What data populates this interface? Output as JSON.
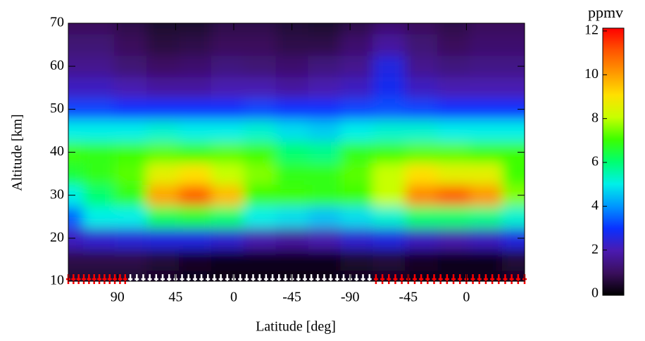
{
  "chart_data": {
    "type": "contour",
    "xlabel": "Latitude [deg]",
    "ylabel": "Altitude [km]",
    "colorbar_label": "ppmv",
    "xlim": [
      52,
      405
    ],
    "ylim": [
      10,
      70
    ],
    "xticks": [
      {
        "value": 90,
        "label": "90"
      },
      {
        "value": 135,
        "label": "45"
      },
      {
        "value": 180,
        "label": "0"
      },
      {
        "value": 225,
        "label": "-45"
      },
      {
        "value": 270,
        "label": "-90"
      },
      {
        "value": 315,
        "label": "-45"
      },
      {
        "value": 360,
        "label": "0"
      }
    ],
    "yticks": [
      10,
      20,
      30,
      40,
      50,
      60,
      70
    ],
    "clim": [
      0,
      12
    ],
    "cticks": [
      0,
      2,
      4,
      6,
      8,
      10,
      12
    ],
    "colormap": [
      "#000000",
      "#3a0f5c",
      "#4a1ab0",
      "#0a30ff",
      "#0096ff",
      "#00f0e8",
      "#00ff70",
      "#3cff00",
      "#c8ff00",
      "#ffe000",
      "#ff9800",
      "#ff5400",
      "#ff0000"
    ],
    "x": [
      52,
      75,
      100,
      125,
      150,
      175,
      200,
      225,
      250,
      275,
      300,
      325,
      350,
      375,
      400
    ],
    "y": [
      10,
      15,
      20,
      25,
      30,
      35,
      40,
      45,
      50,
      55,
      60,
      65,
      70
    ],
    "z": [
      [
        0.5,
        0.5,
        0.5,
        0.4,
        0.3,
        0.2,
        0.2,
        0.2,
        0.2,
        0.3,
        0.4,
        0.3,
        0.3,
        0.3,
        0.4
      ],
      [
        0.8,
        0.8,
        0.8,
        0.6,
        0.4,
        0.3,
        0.3,
        0.3,
        0.3,
        0.5,
        0.6,
        0.4,
        0.3,
        0.3,
        0.6
      ],
      [
        2.2,
        2.4,
        2.5,
        2.6,
        2.6,
        2.4,
        2.0,
        1.8,
        2.0,
        2.4,
        2.6,
        2.2,
        2.0,
        2.2,
        2.6
      ],
      [
        3.5,
        5.0,
        5.0,
        6.2,
        6.5,
        6.0,
        5.0,
        4.8,
        4.5,
        4.8,
        5.2,
        6.0,
        6.0,
        5.8,
        5.2
      ],
      [
        5.0,
        6.0,
        6.8,
        9.8,
        10.8,
        9.5,
        7.0,
        7.0,
        6.8,
        7.0,
        8.0,
        10.2,
        10.8,
        10.0,
        7.5
      ],
      [
        6.5,
        6.8,
        7.2,
        8.5,
        9.0,
        8.0,
        7.5,
        6.8,
        6.8,
        7.2,
        8.0,
        9.0,
        8.5,
        8.5,
        7.0
      ],
      [
        7.0,
        6.8,
        7.0,
        7.2,
        7.0,
        7.2,
        7.0,
        6.0,
        5.8,
        6.8,
        7.0,
        7.2,
        7.2,
        7.0,
        7.0
      ],
      [
        5.0,
        5.0,
        5.0,
        5.2,
        5.0,
        5.0,
        5.2,
        4.8,
        4.6,
        5.0,
        5.2,
        5.2,
        5.0,
        5.0,
        5.0
      ],
      [
        3.2,
        3.2,
        3.0,
        3.0,
        3.0,
        3.0,
        3.2,
        3.0,
        3.0,
        3.2,
        3.3,
        3.2,
        3.0,
        3.0,
        3.0
      ],
      [
        2.2,
        2.2,
        2.0,
        1.8,
        1.8,
        2.0,
        2.0,
        1.8,
        2.0,
        2.2,
        2.8,
        2.2,
        2.0,
        2.0,
        2.0
      ],
      [
        1.6,
        1.6,
        1.3,
        1.1,
        1.2,
        1.4,
        1.3,
        1.2,
        1.4,
        1.6,
        2.6,
        1.6,
        1.4,
        1.5,
        1.5
      ],
      [
        1.3,
        1.3,
        1.0,
        0.7,
        0.8,
        1.0,
        1.0,
        0.8,
        0.8,
        1.2,
        1.8,
        1.3,
        1.0,
        1.2,
        1.2
      ],
      [
        1.0,
        1.0,
        0.8,
        0.5,
        0.5,
        0.8,
        0.8,
        0.6,
        0.5,
        0.8,
        1.2,
        1.0,
        0.8,
        1.0,
        1.0
      ]
    ],
    "markers": [
      {
        "color": "#ff0000",
        "altitude": 10.5,
        "x": [
          52,
          56,
          60,
          64,
          68,
          72,
          76,
          80,
          84,
          88,
          92,
          96
        ]
      },
      {
        "color": "#ffffff",
        "altitude": 10.5,
        "x": [
          100,
          105,
          110,
          115,
          120,
          125,
          130,
          135,
          140,
          145,
          150,
          155,
          160,
          165,
          170,
          175,
          180,
          185,
          190,
          195,
          200,
          205,
          210,
          215,
          220,
          225,
          230,
          235,
          240,
          245,
          250,
          255,
          260,
          265,
          270,
          275,
          280,
          285
        ]
      },
      {
        "color": "#ff0000",
        "altitude": 10.5,
        "x": [
          290,
          295,
          300,
          305,
          310,
          315,
          320,
          325,
          330,
          335,
          340,
          345,
          350,
          355,
          360,
          365,
          370,
          375,
          380,
          385,
          390,
          395,
          400,
          405
        ]
      }
    ]
  }
}
